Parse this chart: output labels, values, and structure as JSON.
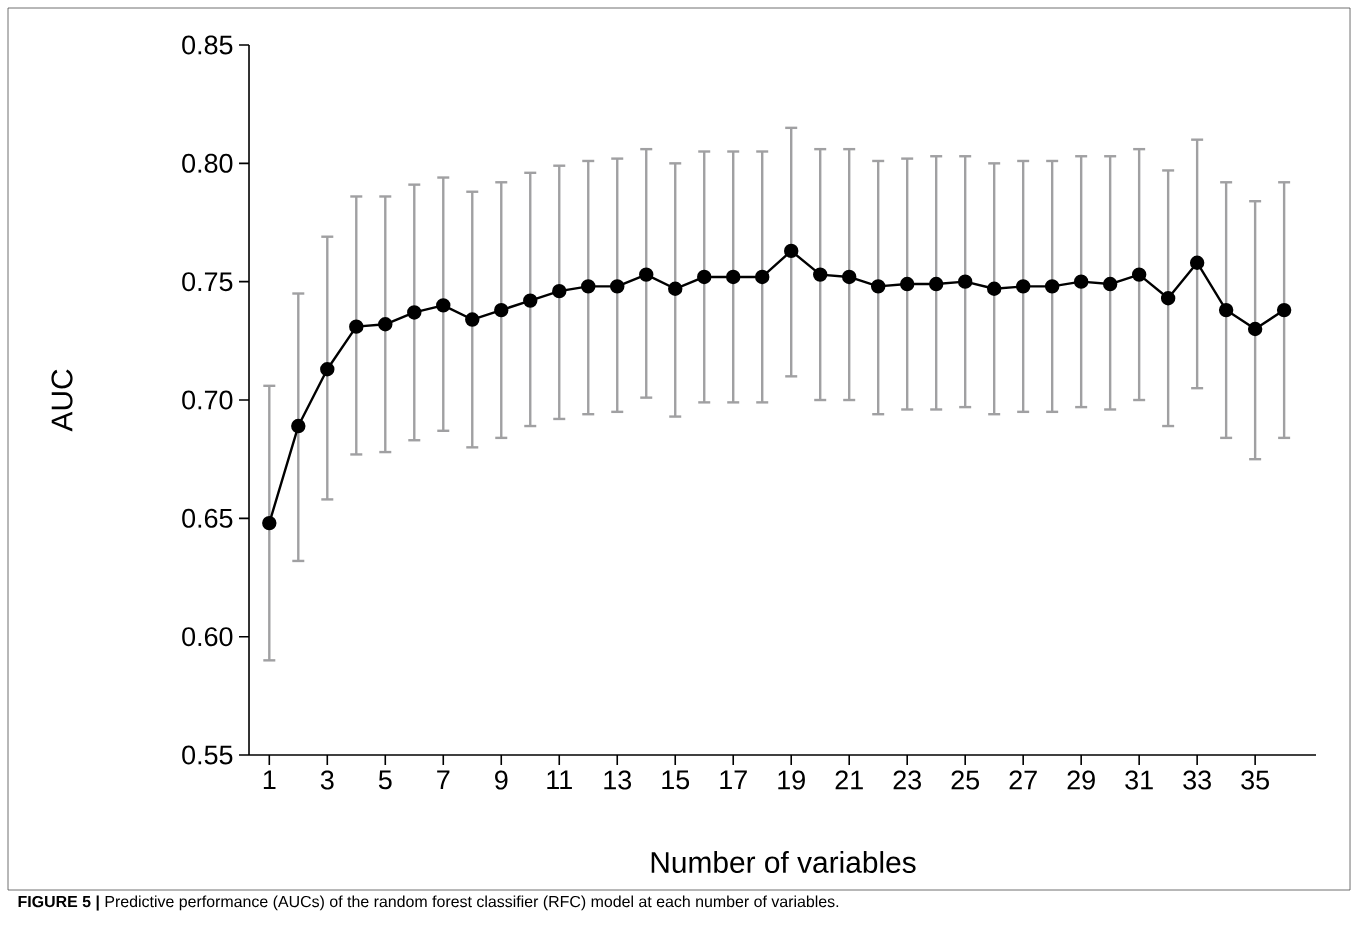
{
  "chart_data": {
    "type": "line",
    "xlabel": "Number of variables",
    "ylabel": "AUC",
    "annotations": [
      "**FIGURE 5 |** Predictive performance (AUCs) of the random forest classifier (RFC) model at each number of variables."
    ],
    "x": [
      1,
      2,
      3,
      4,
      5,
      6,
      7,
      8,
      9,
      10,
      11,
      12,
      13,
      14,
      15,
      16,
      17,
      18,
      19,
      20,
      21,
      22,
      23,
      24,
      25,
      26,
      27,
      28,
      29,
      30,
      31,
      32,
      33,
      34,
      35,
      36
    ],
    "values": [
      0.648,
      0.689,
      0.713,
      0.731,
      0.732,
      0.737,
      0.74,
      0.734,
      0.738,
      0.742,
      0.746,
      0.748,
      0.748,
      0.753,
      0.747,
      0.752,
      0.752,
      0.752,
      0.763,
      0.753,
      0.752,
      0.748,
      0.749,
      0.749,
      0.75,
      0.747,
      0.748,
      0.748,
      0.75,
      0.749,
      0.753,
      0.743,
      0.758,
      0.738,
      0.73,
      0.738
    ],
    "errors": [
      [
        0.59,
        0.706
      ],
      [
        0.632,
        0.745
      ],
      [
        0.658,
        0.769
      ],
      [
        0.677,
        0.786
      ],
      [
        0.678,
        0.786
      ],
      [
        0.683,
        0.791
      ],
      [
        0.687,
        0.794
      ],
      [
        0.68,
        0.788
      ],
      [
        0.684,
        0.792
      ],
      [
        0.689,
        0.796
      ],
      [
        0.692,
        0.799
      ],
      [
        0.694,
        0.801
      ],
      [
        0.695,
        0.802
      ],
      [
        0.701,
        0.806
      ],
      [
        0.693,
        0.8
      ],
      [
        0.699,
        0.805
      ],
      [
        0.699,
        0.805
      ],
      [
        0.699,
        0.805
      ],
      [
        0.71,
        0.815
      ],
      [
        0.7,
        0.806
      ],
      [
        0.7,
        0.806
      ],
      [
        0.694,
        0.801
      ],
      [
        0.696,
        0.802
      ],
      [
        0.696,
        0.803
      ],
      [
        0.697,
        0.803
      ],
      [
        0.694,
        0.8
      ],
      [
        0.695,
        0.801
      ],
      [
        0.695,
        0.801
      ],
      [
        0.697,
        0.803
      ],
      [
        0.696,
        0.803
      ],
      [
        0.7,
        0.806
      ],
      [
        0.689,
        0.797
      ],
      [
        0.705,
        0.81
      ],
      [
        0.684,
        0.792
      ],
      [
        0.675,
        0.784
      ],
      [
        0.684,
        0.792
      ]
    ],
    "color": "#000000",
    "marker": "circle",
    "line_style": "solid",
    "xlim": [
      0.3,
      37.1
    ],
    "xticks": [
      1,
      3,
      5,
      7,
      9,
      11,
      13,
      15,
      17,
      19,
      21,
      23,
      25,
      27,
      29,
      31,
      33,
      35
    ],
    "ylim": [
      0.55,
      0.85
    ],
    "yticks": [
      0.55,
      {
        "value": 0.6,
        "label": "0.60"
      },
      0.65,
      {
        "value": 0.7,
        "label": "0.70"
      },
      0.75,
      {
        "value": 0.8,
        "label": "0.80"
      },
      0.85
    ]
  }
}
